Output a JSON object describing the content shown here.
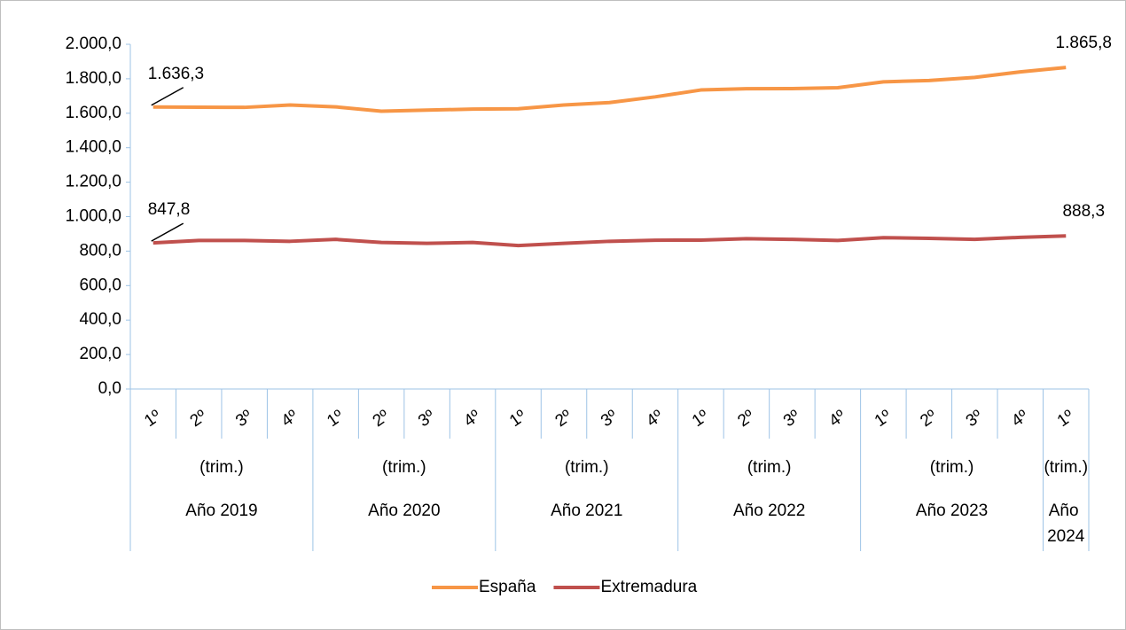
{
  "chart_data": {
    "type": "line",
    "groups": [
      {
        "name": "Año 2019",
        "sublabel": "(trim.)",
        "categories": [
          "1º",
          "2º",
          "3º",
          "4º"
        ]
      },
      {
        "name": "Año 2020",
        "sublabel": "(trim.)",
        "categories": [
          "1º",
          "2º",
          "3º",
          "4º"
        ]
      },
      {
        "name": "Año 2021",
        "sublabel": "(trim.)",
        "categories": [
          "1º",
          "2º",
          "3º",
          "4º"
        ]
      },
      {
        "name": "Año 2022",
        "sublabel": "(trim.)",
        "categories": [
          "1º",
          "2º",
          "3º",
          "4º"
        ]
      },
      {
        "name": "Año 2023",
        "sublabel": "(trim.)",
        "categories": [
          "1º",
          "2º",
          "3º",
          "4º"
        ]
      },
      {
        "name": "Año 2024",
        "sublabel": "(trim.)",
        "categories": [
          "1º"
        ]
      }
    ],
    "series": [
      {
        "name": "España",
        "color": "#f79646",
        "values": [
          1636.3,
          1635,
          1634,
          1648,
          1637,
          1612,
          1618,
          1624,
          1626,
          1648,
          1662,
          1695,
          1735,
          1742,
          1743,
          1748,
          1782,
          1790,
          1808,
          1840,
          1865.8
        ],
        "value_labels": [
          "1.636,3",
          null,
          null,
          null,
          null,
          null,
          null,
          null,
          null,
          null,
          null,
          null,
          null,
          null,
          null,
          null,
          null,
          null,
          null,
          null,
          "1.865,8"
        ]
      },
      {
        "name": "Extremadura",
        "color": "#c0504d",
        "values": [
          847.8,
          862,
          862,
          857,
          868,
          850,
          845,
          850,
          832,
          845,
          857,
          863,
          864,
          872,
          868,
          862,
          878,
          874,
          868,
          880,
          888.3
        ],
        "value_labels": [
          "847,8",
          null,
          null,
          null,
          null,
          null,
          null,
          null,
          null,
          null,
          null,
          null,
          null,
          null,
          null,
          null,
          null,
          null,
          null,
          null,
          "888,3"
        ]
      }
    ],
    "ylim": [
      0,
      2000
    ],
    "yticks": [
      {
        "value": 0,
        "label": "0,0"
      },
      {
        "value": 200,
        "label": "200,0"
      },
      {
        "value": 400,
        "label": "400,0"
      },
      {
        "value": 600,
        "label": "600,0"
      },
      {
        "value": 800,
        "label": "800,0"
      },
      {
        "value": 1000,
        "label": "1.000,0"
      },
      {
        "value": 1200,
        "label": "1.200,0"
      },
      {
        "value": 1400,
        "label": "1.400,0"
      },
      {
        "value": 1600,
        "label": "1.600,0"
      },
      {
        "value": 1800,
        "label": "1.800,0"
      },
      {
        "value": 2000,
        "label": "2.000,0"
      }
    ],
    "legend": "bottom"
  }
}
